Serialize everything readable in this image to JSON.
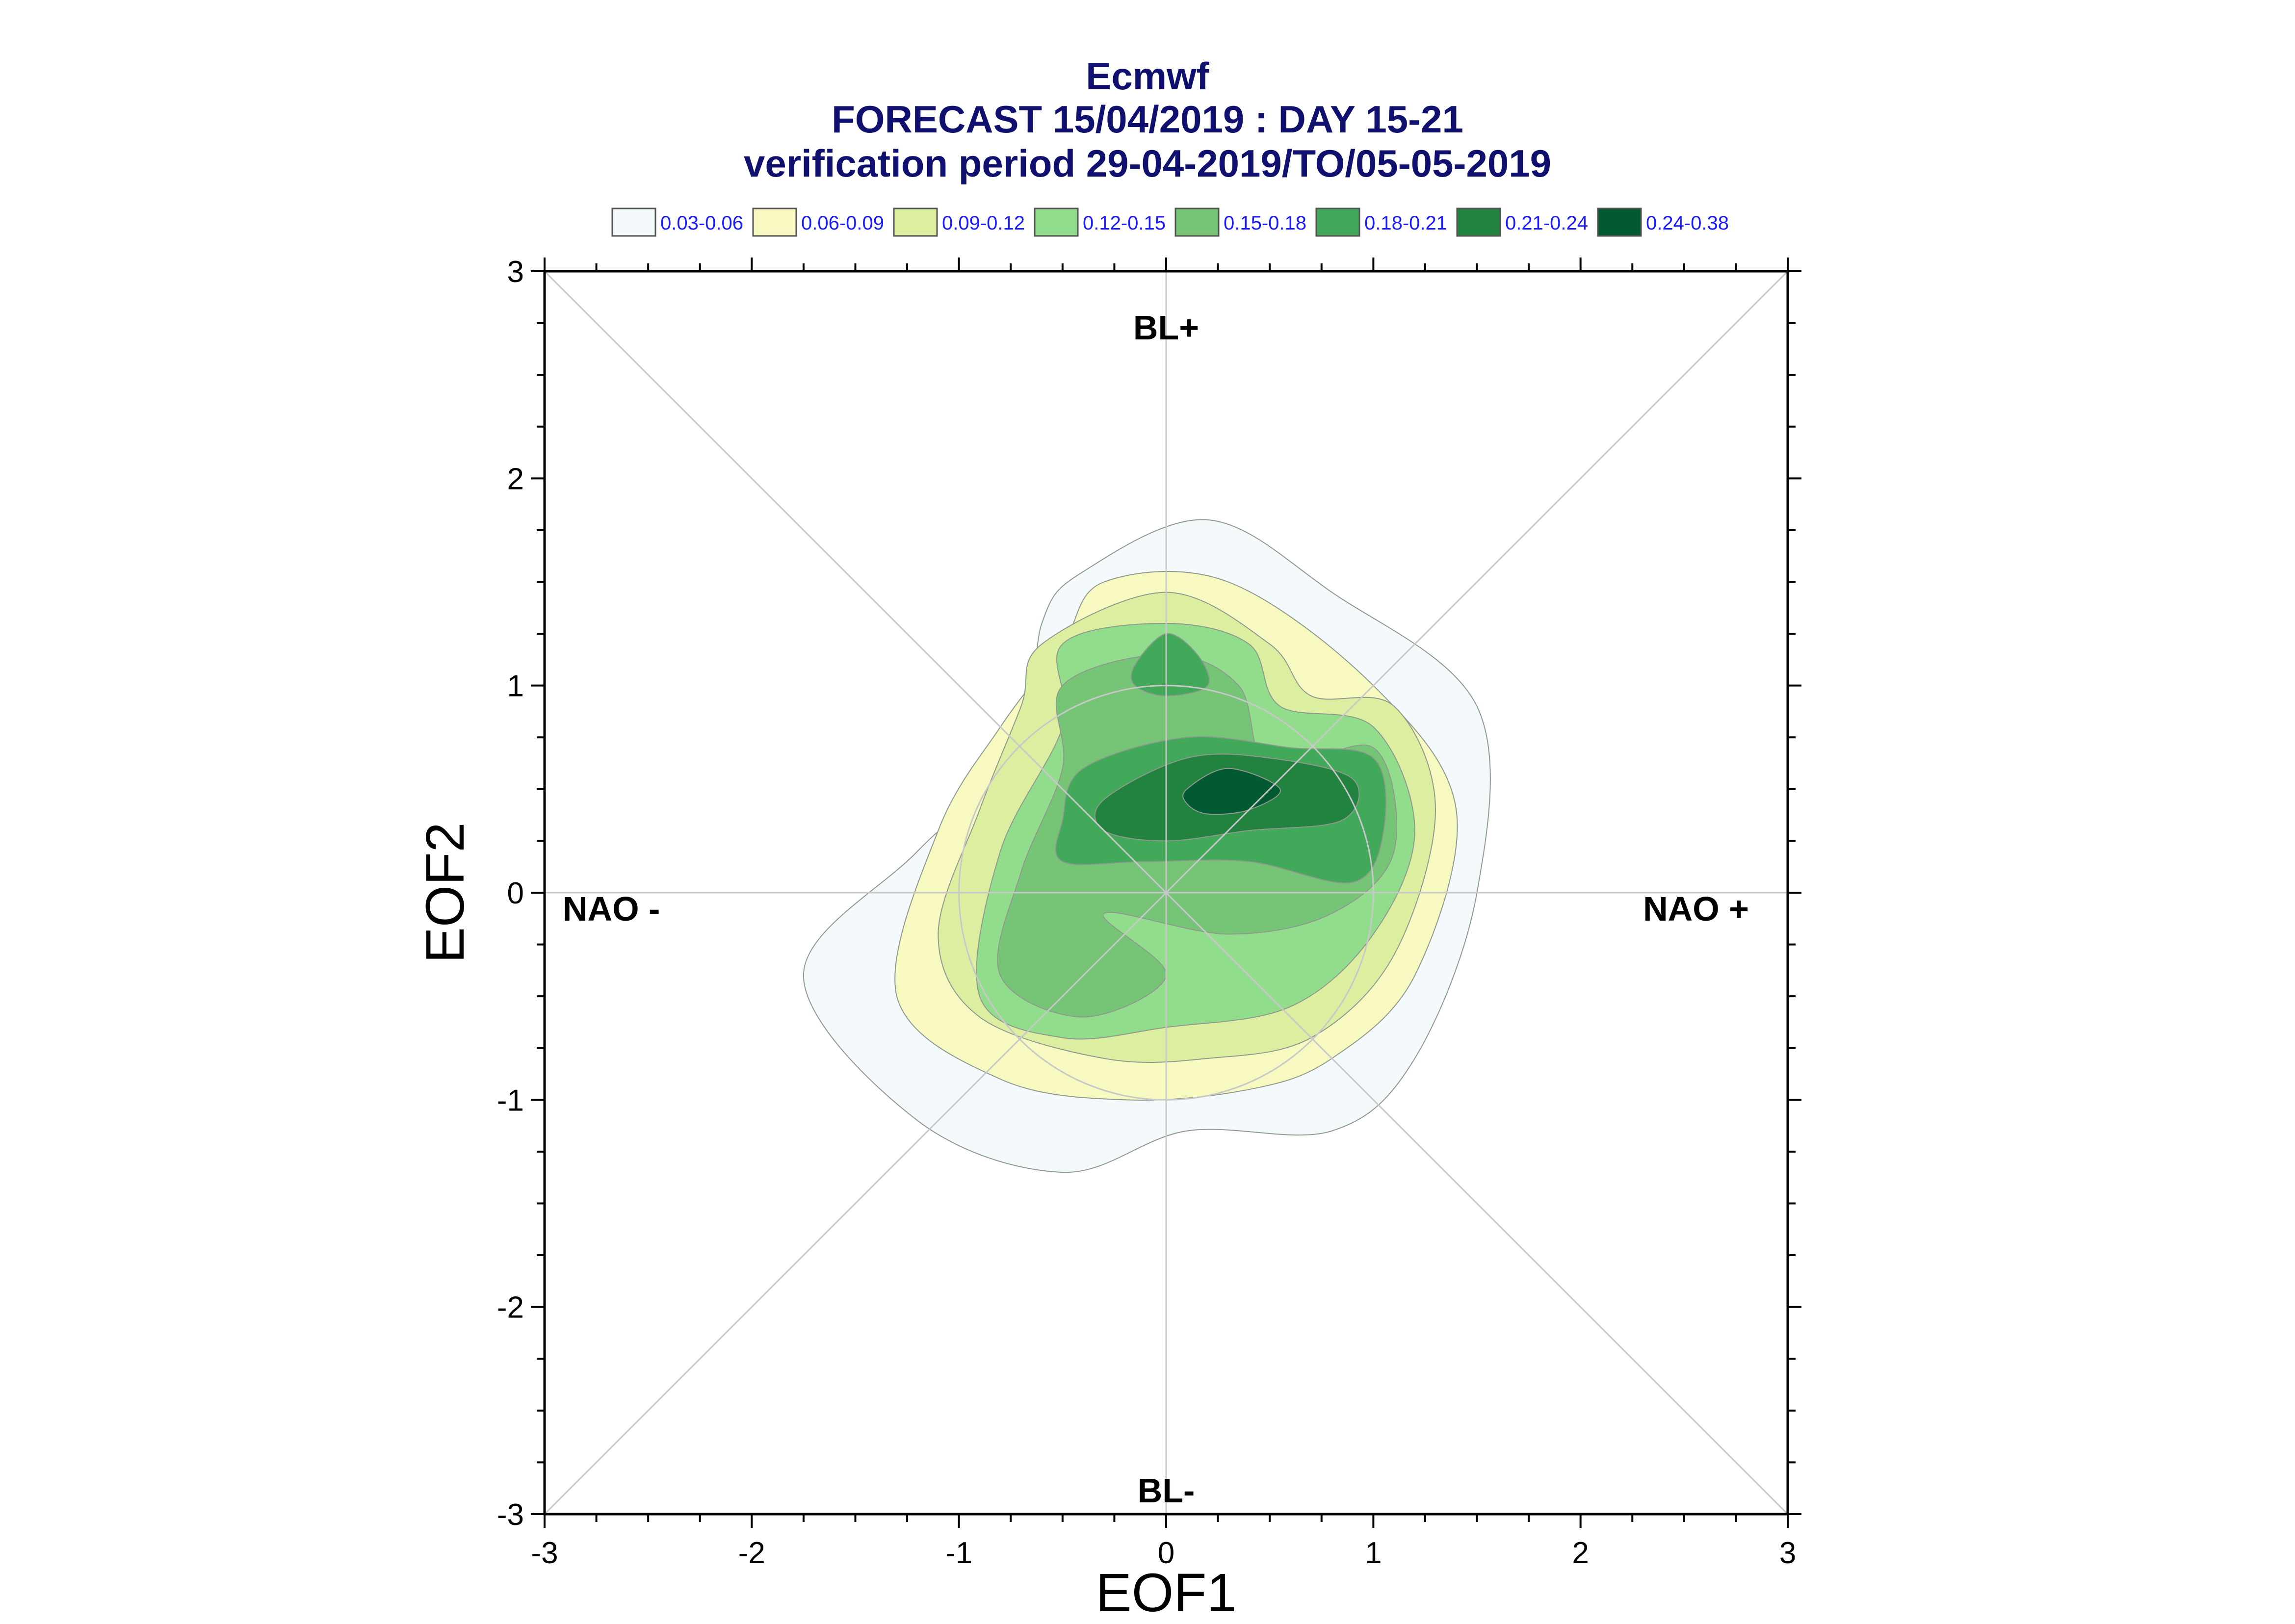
{
  "chart_data": {
    "type": "contour",
    "title_lines": [
      "Ecmwf",
      "FORECAST 15/04/2019 : DAY 15-21",
      "verification period 29-04-2019/TO/05-05-2019"
    ],
    "xlabel": "EOF1",
    "ylabel": "EOF2",
    "xlim": [
      -3,
      3
    ],
    "ylim": [
      -3,
      3
    ],
    "xticks": [
      "-3",
      "-2",
      "-1",
      "0",
      "1",
      "2",
      "3"
    ],
    "yticks": [
      "-3",
      "-2",
      "-1",
      "0",
      "1",
      "2",
      "3"
    ],
    "regime_labels": {
      "top": "BL+",
      "bottom": "BL-",
      "left": "NAO -",
      "right": "NAO +"
    },
    "legend": [
      {
        "label": "0.03-0.06",
        "color": "#f4f9fc"
      },
      {
        "label": "0.06-0.09",
        "color": "#f7f9c1"
      },
      {
        "label": "0.09-0.12",
        "color": "#dcefa0"
      },
      {
        "label": "0.12-0.15",
        "color": "#92dd8c"
      },
      {
        "label": "0.15-0.18",
        "color": "#76c577"
      },
      {
        "label": "0.18-0.21",
        "color": "#42a95a"
      },
      {
        "label": "0.21-0.24",
        "color": "#22823f"
      },
      {
        "label": "0.24-0.38",
        "color": "#015a32"
      }
    ],
    "reference_circle_radius": 1,
    "levels": [
      {
        "range": "0.03-0.06",
        "color": "#f4f9fc",
        "points": [
          [
            -0.4,
            1.55
          ],
          [
            0.2,
            1.8
          ],
          [
            0.8,
            1.45
          ],
          [
            1.5,
            0.9
          ],
          [
            1.5,
            0
          ],
          [
            1.2,
            -0.8
          ],
          [
            0.8,
            -1.15
          ],
          [
            0.1,
            -1.15
          ],
          [
            -0.5,
            -1.35
          ],
          [
            -1.2,
            -1.1
          ],
          [
            -1.75,
            -0.4
          ],
          [
            -1.2,
            0.2
          ],
          [
            -0.7,
            0.7
          ],
          [
            -0.6,
            1.3
          ]
        ]
      },
      {
        "range": "0.06-0.09",
        "color": "#f7f9c1",
        "points": [
          [
            -0.5,
            1.2
          ],
          [
            -0.3,
            1.5
          ],
          [
            0.3,
            1.5
          ],
          [
            1.0,
            1.0
          ],
          [
            1.4,
            0.4
          ],
          [
            1.2,
            -0.4
          ],
          [
            0.8,
            -0.8
          ],
          [
            0.4,
            -0.95
          ],
          [
            -0.2,
            -1.0
          ],
          [
            -0.8,
            -0.9
          ],
          [
            -1.3,
            -0.5
          ],
          [
            -1.1,
            0.3
          ],
          [
            -0.8,
            0.8
          ]
        ]
      },
      {
        "range": "0.09-0.12",
        "color": "#dcefa0",
        "points": [
          [
            -0.6,
            1.2
          ],
          [
            0.0,
            1.45
          ],
          [
            0.5,
            1.2
          ],
          [
            0.7,
            0.95
          ],
          [
            1.1,
            0.9
          ],
          [
            1.3,
            0.4
          ],
          [
            1.1,
            -0.3
          ],
          [
            0.7,
            -0.7
          ],
          [
            0.2,
            -0.8
          ],
          [
            -0.3,
            -0.8
          ],
          [
            -0.9,
            -0.6
          ],
          [
            -1.1,
            -0.2
          ],
          [
            -0.9,
            0.4
          ],
          [
            -0.7,
            0.9
          ]
        ]
      },
      {
        "range": "0.12-0.15",
        "color": "#92dd8c",
        "points": [
          [
            -0.5,
            1.2
          ],
          [
            0.0,
            1.3
          ],
          [
            0.4,
            1.2
          ],
          [
            0.55,
            0.9
          ],
          [
            1.0,
            0.8
          ],
          [
            1.2,
            0.3
          ],
          [
            1.0,
            -0.2
          ],
          [
            0.6,
            -0.55
          ],
          [
            0.0,
            -0.65
          ],
          [
            -0.5,
            -0.7
          ],
          [
            -0.9,
            -0.5
          ],
          [
            -0.8,
            0.2
          ],
          [
            -0.5,
            0.8
          ]
        ]
      },
      {
        "range": "0.15-0.18",
        "color": "#76c577",
        "points": [
          [
            -0.5,
            1.0
          ],
          [
            0.0,
            1.15
          ],
          [
            0.35,
            1.0
          ],
          [
            0.5,
            0.6
          ],
          [
            1.0,
            0.7
          ],
          [
            1.1,
            0.2
          ],
          [
            0.8,
            -0.1
          ],
          [
            0.3,
            -0.2
          ],
          [
            -0.3,
            -0.1
          ],
          [
            0.0,
            -0.4
          ],
          [
            -0.4,
            -0.6
          ],
          [
            -0.8,
            -0.4
          ],
          [
            -0.7,
            0.1
          ],
          [
            -0.5,
            0.6
          ]
        ]
      },
      {
        "range": "0.18-0.21",
        "color": "#42a95a",
        "points": [
          [
            -0.4,
            0.6
          ],
          [
            0.1,
            0.75
          ],
          [
            0.6,
            0.7
          ],
          [
            1.0,
            0.65
          ],
          [
            1.05,
            0.3
          ],
          [
            0.9,
            0.05
          ],
          [
            0.4,
            0.15
          ],
          [
            -0.1,
            0.15
          ],
          [
            -0.5,
            0.15
          ],
          [
            -0.5,
            0.35
          ]
        ]
      },
      {
        "range": "0.18-0.21",
        "color": "#42a95a",
        "points": [
          [
            -0.15,
            1.1
          ],
          [
            0.0,
            1.25
          ],
          [
            0.15,
            1.15
          ],
          [
            0.2,
            1.0
          ],
          [
            0.0,
            0.95
          ],
          [
            -0.15,
            1.0
          ]
        ]
      },
      {
        "range": "0.21-0.24",
        "color": "#22823f",
        "points": [
          [
            -0.3,
            0.45
          ],
          [
            0.1,
            0.65
          ],
          [
            0.5,
            0.65
          ],
          [
            0.9,
            0.55
          ],
          [
            0.85,
            0.35
          ],
          [
            0.4,
            0.3
          ],
          [
            0.0,
            0.25
          ],
          [
            -0.3,
            0.3
          ]
        ]
      },
      {
        "range": "0.24-0.38",
        "color": "#015a32",
        "points": [
          [
            0.1,
            0.5
          ],
          [
            0.3,
            0.6
          ],
          [
            0.55,
            0.5
          ],
          [
            0.4,
            0.4
          ],
          [
            0.2,
            0.38
          ],
          [
            0.1,
            0.43
          ]
        ]
      }
    ]
  }
}
